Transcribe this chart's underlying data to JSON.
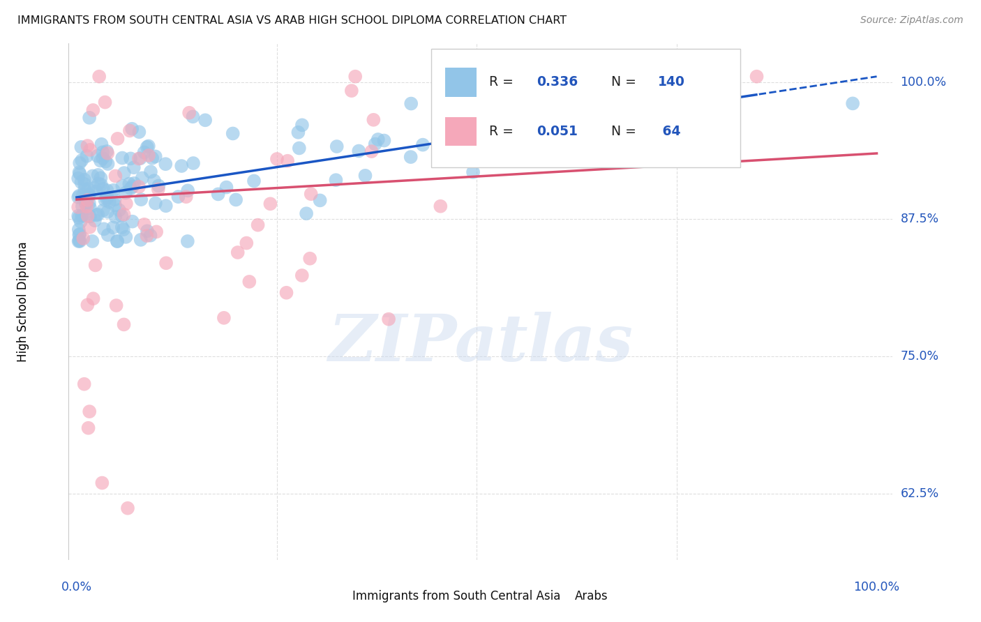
{
  "title": "IMMIGRANTS FROM SOUTH CENTRAL ASIA VS ARAB HIGH SCHOOL DIPLOMA CORRELATION CHART",
  "source": "Source: ZipAtlas.com",
  "ylabel": "High School Diploma",
  "ytick_labels": [
    "100.0%",
    "87.5%",
    "75.0%",
    "62.5%"
  ],
  "ytick_values": [
    1.0,
    0.875,
    0.75,
    0.625
  ],
  "xlim": [
    -0.01,
    1.02
  ],
  "ylim": [
    0.565,
    1.035
  ],
  "blue_R": 0.336,
  "blue_N": 140,
  "pink_R": 0.051,
  "pink_N": 64,
  "blue_color": "#92C5E8",
  "pink_color": "#F5A8BA",
  "trend_blue": "#1A56C4",
  "trend_pink": "#D85070",
  "legend_label_blue": "Immigrants from South Central Asia",
  "legend_label_pink": "Arabs",
  "watermark": "ZIPatlas",
  "background_color": "#FFFFFF",
  "grid_color": "#DEDEDE",
  "blue_trend_x0": 0.0,
  "blue_trend_y0": 0.895,
  "blue_trend_x1": 1.0,
  "blue_trend_y1": 1.005,
  "pink_trend_x0": 0.0,
  "pink_trend_y0": 0.893,
  "pink_trend_x1": 1.0,
  "pink_trend_y1": 0.935
}
